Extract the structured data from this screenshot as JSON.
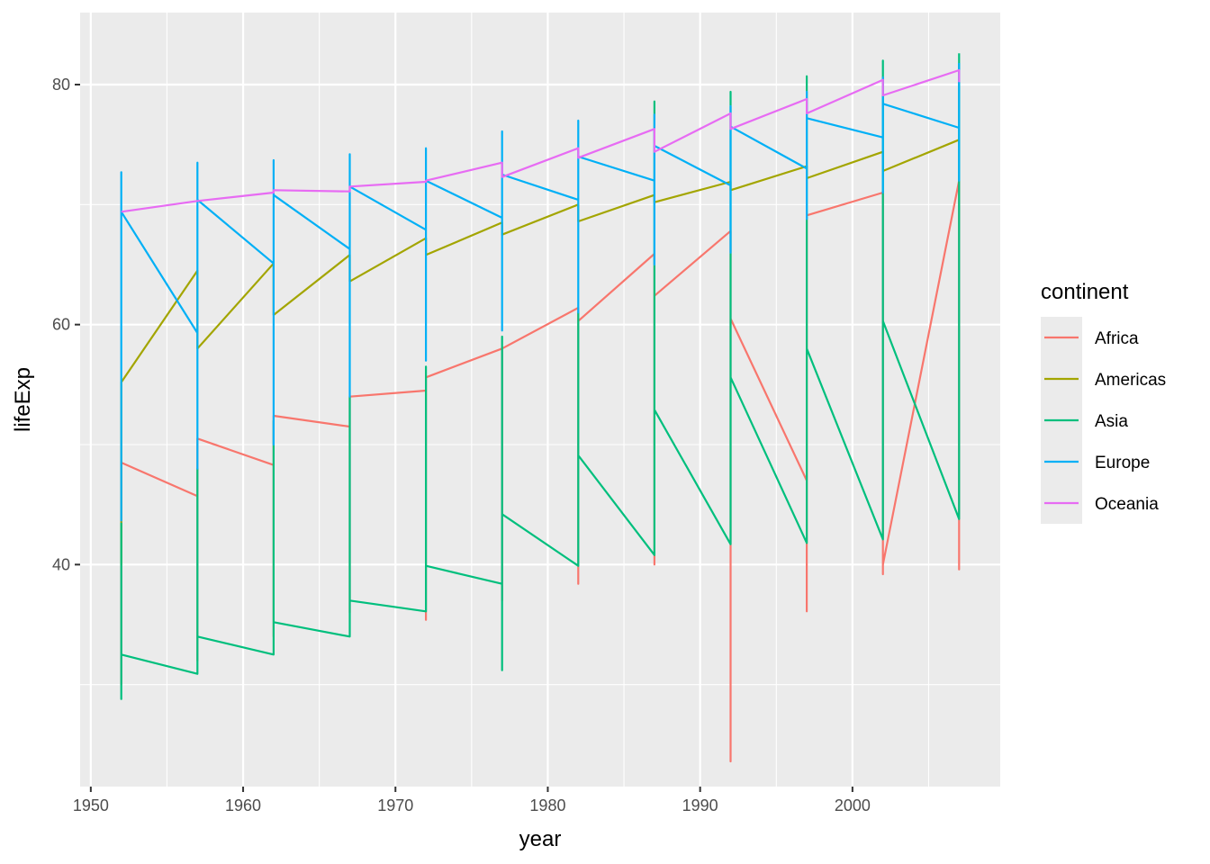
{
  "chart_data": {
    "type": "line",
    "xlabel": "year",
    "ylabel": "lifeExp",
    "xlim": [
      1949.3,
      2009.7
    ],
    "ylim": [
      21.5,
      86.0
    ],
    "x_ticks": [
      1950,
      1960,
      1970,
      1980,
      1990,
      2000
    ],
    "y_ticks": [
      40,
      60,
      80
    ],
    "grid": true,
    "legend": {
      "title": "continent",
      "placement": "right",
      "entries": [
        "Africa",
        "Americas",
        "Asia",
        "Europe",
        "Oceania"
      ]
    },
    "series": [
      {
        "name": "Africa",
        "color": "#F8766D",
        "points": [
          [
            1952,
            48.5
          ],
          [
            1952,
            30.0
          ],
          [
            1952,
            48.5
          ],
          [
            1957,
            45.7
          ],
          [
            1957,
            32.0
          ],
          [
            1957,
            50.5
          ],
          [
            1962,
            48.3
          ],
          [
            1962,
            34.0
          ],
          [
            1962,
            52.4
          ],
          [
            1967,
            51.5
          ],
          [
            1967,
            36.0
          ],
          [
            1967,
            54.0
          ],
          [
            1972,
            54.5
          ],
          [
            1972,
            35.4
          ],
          [
            1972,
            55.6
          ],
          [
            1977,
            58.0
          ],
          [
            1977,
            37.0
          ],
          [
            1977,
            58.0
          ],
          [
            1982,
            61.4
          ],
          [
            1982,
            38.4
          ],
          [
            1982,
            60.3
          ],
          [
            1987,
            65.9
          ],
          [
            1987,
            40.0
          ],
          [
            1987,
            62.4
          ],
          [
            1992,
            67.8
          ],
          [
            1992,
            23.6
          ],
          [
            1992,
            60.5
          ],
          [
            1997,
            47.0
          ],
          [
            1997,
            36.1
          ],
          [
            1997,
            69.1
          ],
          [
            2002,
            71.0
          ],
          [
            2002,
            39.2
          ],
          [
            2002,
            40.0
          ],
          [
            2007,
            72.0
          ],
          [
            2007,
            39.6
          ],
          [
            2007,
            72.0
          ]
        ]
      },
      {
        "name": "Americas",
        "color": "#A3A500",
        "points": [
          [
            1952,
            55.2
          ],
          [
            1952,
            40.0
          ],
          [
            1952,
            55.2
          ],
          [
            1957,
            64.5
          ],
          [
            1957,
            58.0
          ],
          [
            1962,
            65.1
          ],
          [
            1962,
            60.8
          ],
          [
            1967,
            65.8
          ],
          [
            1967,
            63.6
          ],
          [
            1972,
            67.2
          ],
          [
            1972,
            65.8
          ],
          [
            1977,
            68.5
          ],
          [
            1977,
            67.5
          ],
          [
            1982,
            70.0
          ],
          [
            1982,
            68.6
          ],
          [
            1987,
            70.8
          ],
          [
            1987,
            70.2
          ],
          [
            1992,
            71.9
          ],
          [
            1992,
            71.2
          ],
          [
            1997,
            73.2
          ],
          [
            1997,
            72.2
          ],
          [
            2002,
            74.4
          ],
          [
            2002,
            72.8
          ],
          [
            2007,
            75.4
          ]
        ]
      },
      {
        "name": "Asia",
        "color": "#00BF7D",
        "points": [
          [
            1952,
            43.5
          ],
          [
            1952,
            28.8
          ],
          [
            1952,
            32.5
          ],
          [
            1957,
            30.9
          ],
          [
            1957,
            48.0
          ],
          [
            1957,
            34.0
          ],
          [
            1962,
            32.5
          ],
          [
            1962,
            52.0
          ],
          [
            1962,
            35.2
          ],
          [
            1967,
            34.0
          ],
          [
            1967,
            54.0
          ],
          [
            1967,
            37.0
          ],
          [
            1972,
            36.1
          ],
          [
            1972,
            56.5
          ],
          [
            1972,
            39.9
          ],
          [
            1977,
            38.4
          ],
          [
            1977,
            59.0
          ],
          [
            1977,
            31.2
          ],
          [
            1977,
            44.2
          ],
          [
            1982,
            39.9
          ],
          [
            1982,
            61.0
          ],
          [
            1982,
            49.1
          ],
          [
            1987,
            40.8
          ],
          [
            1987,
            78.6
          ],
          [
            1987,
            52.9
          ],
          [
            1992,
            41.7
          ],
          [
            1992,
            79.4
          ],
          [
            1992,
            55.6
          ],
          [
            1997,
            41.8
          ],
          [
            1997,
            80.7
          ],
          [
            1997,
            58.0
          ],
          [
            2002,
            42.1
          ],
          [
            2002,
            82.0
          ],
          [
            2002,
            60.3
          ],
          [
            2007,
            43.8
          ],
          [
            2007,
            82.6
          ]
        ]
      },
      {
        "name": "Europe",
        "color": "#00B0F6",
        "points": [
          [
            1952,
            43.6
          ],
          [
            1952,
            72.7
          ],
          [
            1952,
            69.4
          ],
          [
            1957,
            59.3
          ],
          [
            1957,
            48.0
          ],
          [
            1957,
            73.5
          ],
          [
            1957,
            70.4
          ],
          [
            1962,
            65.1
          ],
          [
            1962,
            50.0
          ],
          [
            1962,
            73.7
          ],
          [
            1962,
            70.8
          ],
          [
            1967,
            66.3
          ],
          [
            1967,
            54.0
          ],
          [
            1967,
            74.2
          ],
          [
            1967,
            71.5
          ],
          [
            1972,
            67.9
          ],
          [
            1972,
            57.0
          ],
          [
            1972,
            74.7
          ],
          [
            1972,
            72.0
          ],
          [
            1977,
            68.9
          ],
          [
            1977,
            59.5
          ],
          [
            1977,
            76.1
          ],
          [
            1977,
            72.5
          ],
          [
            1982,
            70.4
          ],
          [
            1982,
            61.0
          ],
          [
            1982,
            77.0
          ],
          [
            1982,
            74.0
          ],
          [
            1987,
            72.0
          ],
          [
            1987,
            65.0
          ],
          [
            1987,
            77.5
          ],
          [
            1987,
            74.9
          ],
          [
            1992,
            71.6
          ],
          [
            1992,
            66.0
          ],
          [
            1992,
            78.2
          ],
          [
            1992,
            76.5
          ],
          [
            1997,
            73.0
          ],
          [
            1997,
            68.8
          ],
          [
            1997,
            79.4
          ],
          [
            1997,
            77.2
          ],
          [
            2002,
            75.6
          ],
          [
            2002,
            71.0
          ],
          [
            2002,
            80.6
          ],
          [
            2002,
            78.4
          ],
          [
            2007,
            76.4
          ],
          [
            2007,
            72.0
          ],
          [
            2007,
            81.8
          ]
        ]
      },
      {
        "name": "Oceania",
        "color": "#E76BF3",
        "points": [
          [
            1952,
            69.4
          ],
          [
            1957,
            70.3
          ],
          [
            1962,
            71.0
          ],
          [
            1962,
            71.2
          ],
          [
            1967,
            71.1
          ],
          [
            1967,
            71.5
          ],
          [
            1972,
            71.9
          ],
          [
            1972,
            72.0
          ],
          [
            1977,
            73.5
          ],
          [
            1977,
            72.3
          ],
          [
            1982,
            74.7
          ],
          [
            1982,
            73.9
          ],
          [
            1987,
            76.3
          ],
          [
            1987,
            74.4
          ],
          [
            1992,
            77.6
          ],
          [
            1992,
            76.3
          ],
          [
            1997,
            78.8
          ],
          [
            1997,
            77.6
          ],
          [
            2002,
            80.4
          ],
          [
            2002,
            79.1
          ],
          [
            2007,
            81.2
          ],
          [
            2007,
            80.2
          ]
        ]
      }
    ]
  }
}
